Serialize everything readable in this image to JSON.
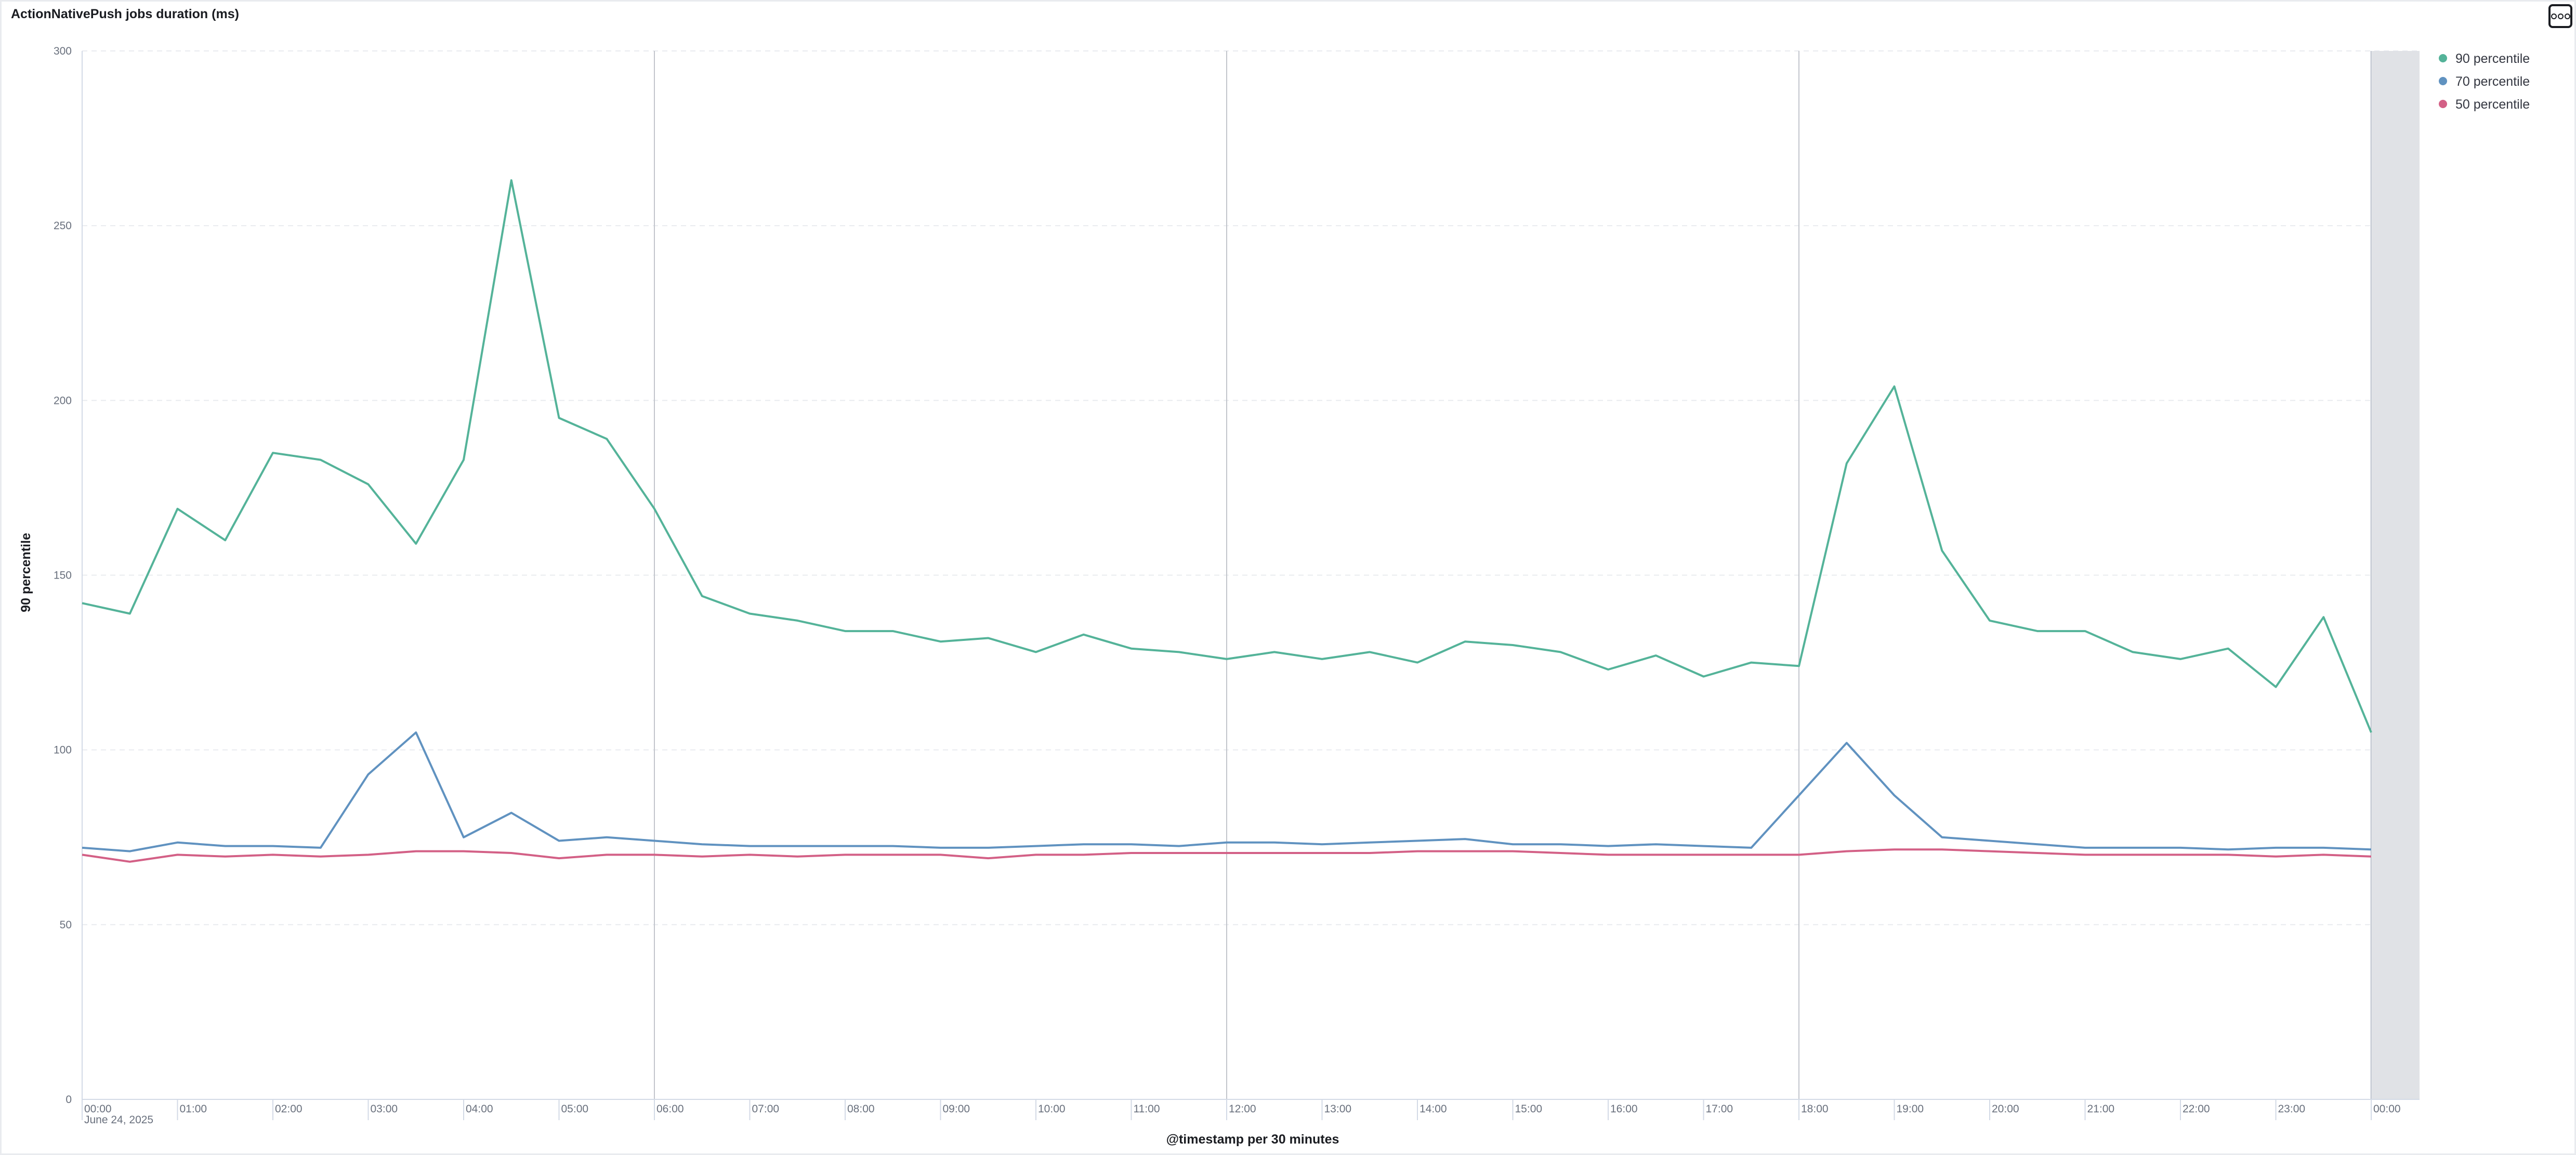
{
  "panel": {
    "title": "ActionNativePush jobs duration (ms)",
    "options_icon": "ellipsis-icon"
  },
  "chart_data": {
    "type": "line",
    "title": "ActionNativePush jobs duration (ms)",
    "xlabel": "@timestamp per 30 minutes",
    "ylabel": "90 percentile",
    "ylim": [
      0,
      300
    ],
    "y_ticks": [
      0,
      50,
      100,
      150,
      200,
      250,
      300
    ],
    "x_interval": "30 minutes",
    "x_tick_labels": [
      "00:00",
      "01:00",
      "02:00",
      "03:00",
      "04:00",
      "05:00",
      "06:00",
      "07:00",
      "08:00",
      "09:00",
      "10:00",
      "11:00",
      "12:00",
      "13:00",
      "14:00",
      "15:00",
      "16:00",
      "17:00",
      "18:00",
      "19:00",
      "20:00",
      "21:00",
      "22:00",
      "23:00",
      "00:00"
    ],
    "x_date_label": "June 24, 2025",
    "grid": "horizontal dashed",
    "legend_position": "top-right",
    "shaded_region": "after final 00:00 (partial bucket)",
    "series": [
      {
        "name": "90 percentile",
        "color": "#54b399",
        "values": [
          142,
          139,
          169,
          160,
          185,
          183,
          176,
          159,
          183,
          263,
          195,
          189,
          169,
          144,
          139,
          137,
          134,
          134,
          131,
          132,
          128,
          133,
          129,
          128,
          126,
          128,
          126,
          128,
          125,
          131,
          130,
          128,
          123,
          127,
          121,
          125,
          124,
          182,
          204,
          157,
          137,
          134,
          134,
          128,
          126,
          129,
          118,
          138,
          105
        ]
      },
      {
        "name": "70 percentile",
        "color": "#6092c0",
        "values": [
          72,
          71,
          73.5,
          72.5,
          72.5,
          72,
          93,
          105,
          75,
          82,
          74,
          75,
          74,
          73,
          72.5,
          72.5,
          72.5,
          72.5,
          72,
          72,
          72.5,
          73,
          73,
          72.5,
          73.5,
          73.5,
          73,
          73.5,
          74,
          74.5,
          73,
          73,
          72.5,
          73,
          72.5,
          72,
          87,
          102,
          87,
          75,
          74,
          73,
          72,
          72,
          72,
          71.5,
          72,
          72,
          71.5
        ]
      },
      {
        "name": "50 percentile",
        "color": "#d36086",
        "values": [
          70,
          68,
          70,
          69.5,
          70,
          69.5,
          70,
          71,
          71,
          70.5,
          69,
          70,
          70,
          69.5,
          70,
          69.5,
          70,
          70,
          70,
          69,
          70,
          70,
          70.5,
          70.5,
          70.5,
          70.5,
          70.5,
          70.5,
          71,
          71,
          71,
          70.5,
          70,
          70,
          70,
          70,
          70,
          71,
          71.5,
          71.5,
          71,
          70.5,
          70,
          70,
          70,
          70,
          69.5,
          70,
          69.5
        ]
      }
    ]
  }
}
